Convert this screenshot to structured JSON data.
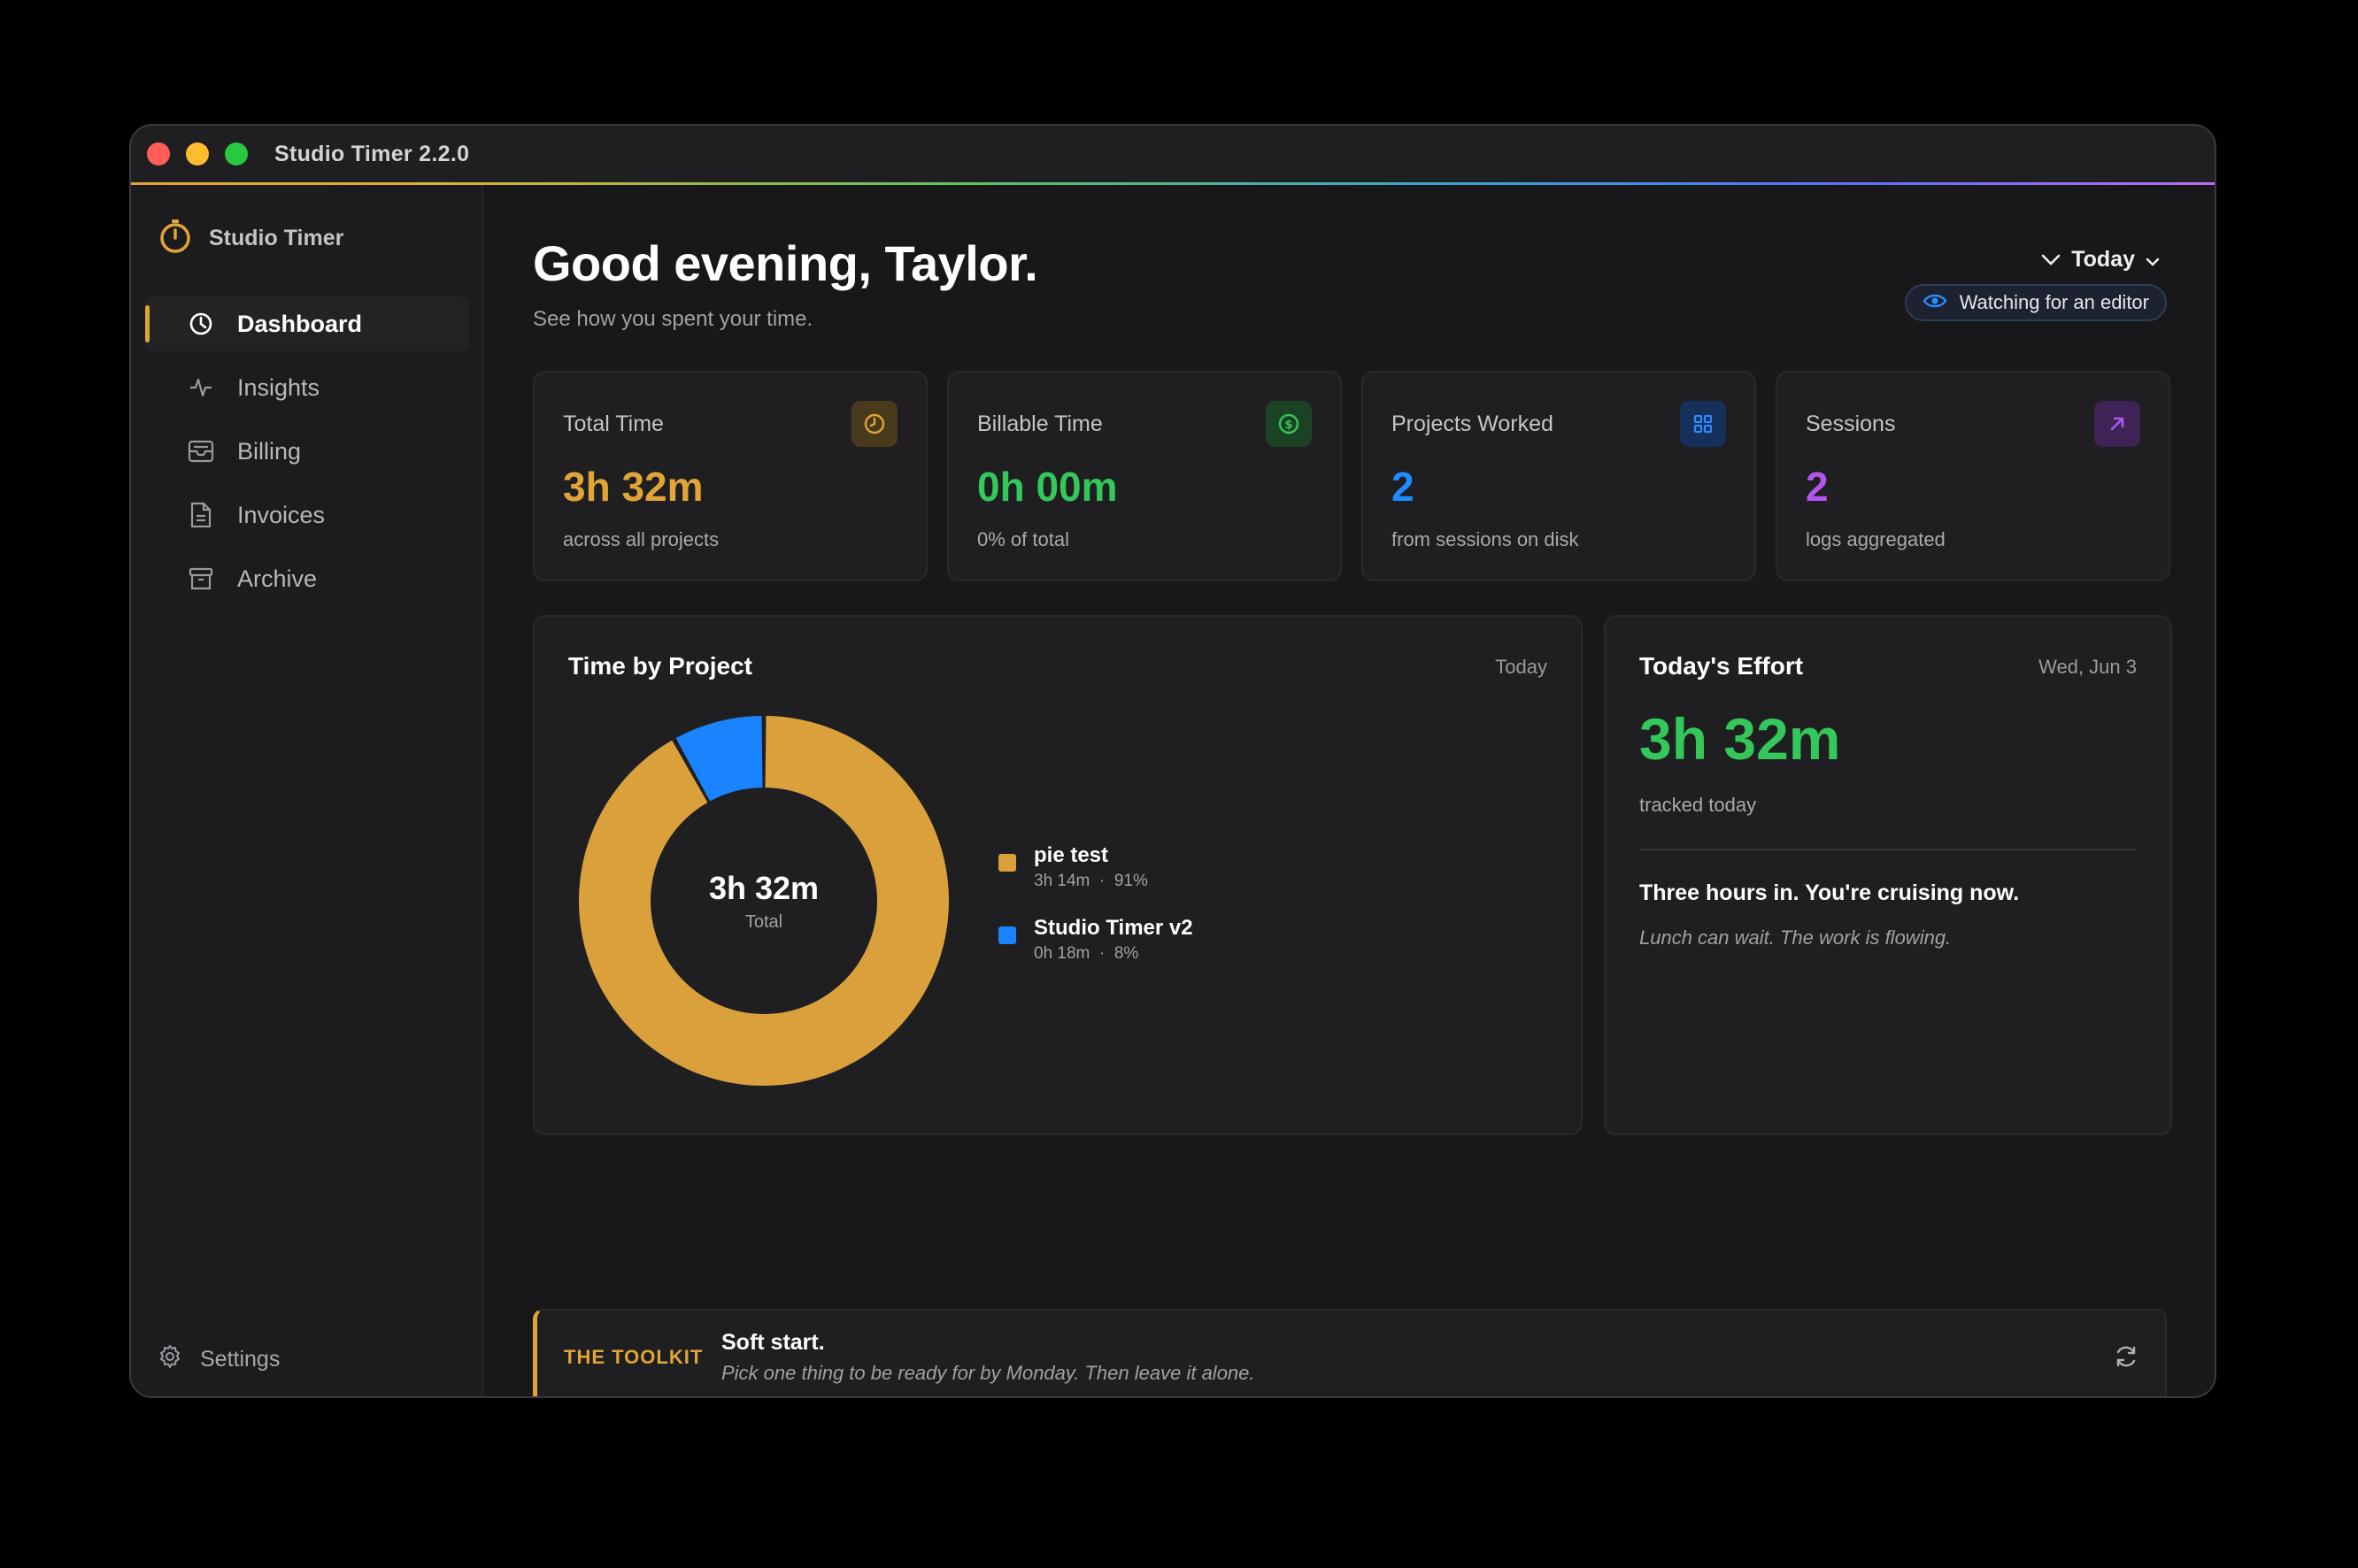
{
  "window": {
    "title": "Studio Timer 2.2.0"
  },
  "sidebar": {
    "brand": "Studio Timer",
    "items": [
      {
        "label": "Dashboard",
        "icon": "clock-icon",
        "active": true
      },
      {
        "label": "Insights",
        "icon": "activity-icon",
        "active": false
      },
      {
        "label": "Billing",
        "icon": "inbox-icon",
        "active": false
      },
      {
        "label": "Invoices",
        "icon": "document-icon",
        "active": false
      },
      {
        "label": "Archive",
        "icon": "archive-icon",
        "active": false
      }
    ],
    "settings_label": "Settings"
  },
  "header": {
    "greeting": "Good evening, Taylor.",
    "subtitle": "See how you spent your time.",
    "range_label": "Today",
    "watch_label": "Watching for an editor"
  },
  "stats": [
    {
      "label": "Total Time",
      "value": "3h 32m",
      "sub": "across all projects",
      "color": "#e0a437",
      "icon": "clock-icon"
    },
    {
      "label": "Billable Time",
      "value": "0h 00m",
      "sub": "0% of total",
      "color": "#34c759",
      "icon": "dollar-icon"
    },
    {
      "label": "Projects Worked",
      "value": "2",
      "sub": "from sessions on disk",
      "color": "#1e8cff",
      "icon": "grid-icon"
    },
    {
      "label": "Sessions",
      "value": "2",
      "sub": "logs aggregated",
      "color": "#b455f0",
      "icon": "arrow-up-right-icon"
    }
  ],
  "time_by_project": {
    "title": "Time by Project",
    "range": "Today",
    "total_value": "3h 32m",
    "total_label": "Total"
  },
  "chart_data": {
    "type": "pie",
    "categories": [
      "pie test",
      "Studio Timer v2"
    ],
    "values": [
      91,
      8
    ],
    "durations": [
      "3h 14m",
      "0h 18m"
    ],
    "percent_labels": [
      "91%",
      "8%"
    ],
    "colors": [
      "#d9a03c",
      "#1a84ff"
    ],
    "legend_placement": "right"
  },
  "effort": {
    "title": "Today's Effort",
    "date": "Wed, Jun 3",
    "value": "3h 32m",
    "sub": "tracked today",
    "message": "Three hours in. You're cruising now.",
    "note": "Lunch can wait. The work is flowing."
  },
  "tip": {
    "tag": "THE TOOLKIT",
    "title": "Soft start.",
    "body": "Pick one thing to be ready for by Monday. Then leave it alone."
  },
  "colors": {
    "accent": "#e0a437",
    "background": "#18181b"
  }
}
